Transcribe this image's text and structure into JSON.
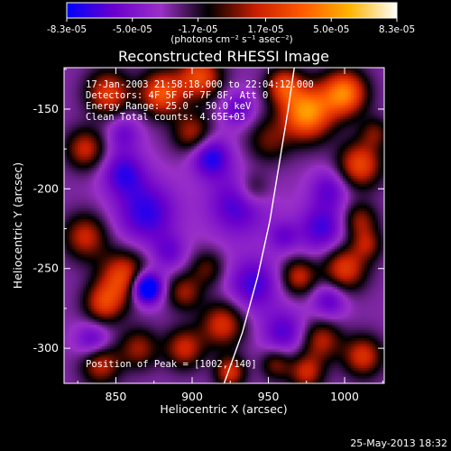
{
  "colorbar": {
    "tick_labels": [
      "-8.3e-05",
      "-5.0e-05",
      "-1.7e-05",
      "1.7e-05",
      "5.0e-05",
      "8.3e-05"
    ],
    "units_label": "(photons cm⁻² s⁻¹ asec⁻²)",
    "range": [
      -8.3e-05,
      8.3e-05
    ],
    "colors": [
      "#0000ff",
      "#6a00cc",
      "#9a30c8",
      "#000000",
      "#c81e00",
      "#ff5a00",
      "#ffb400",
      "#ffffff"
    ]
  },
  "chart_data": {
    "type": "heatmap",
    "title": "Reconstructed RHESSI Image",
    "xlabel": "Heliocentric X (arcsec)",
    "ylabel": "Heliocentric Y (arcsec)",
    "xlim": [
      816,
      1026
    ],
    "ylim": [
      -322,
      -124
    ],
    "x_ticks": [
      850,
      900,
      950,
      1000
    ],
    "y_ticks": [
      -300,
      -250,
      -200,
      -150
    ],
    "annotations": {
      "time": "17-Jan-2003 21:58:18.000 to 22:04:12.000",
      "detectors": "Detectors: 4F 5F 6F 7F 8F, Att 0",
      "energy": "Energy Range: 25.0 - 50.0 keV",
      "clean": "Clean     Total counts: 4.65E+03",
      "peak": "Position of Peak = [1002,-140]"
    },
    "peak": [
      1002,
      -140
    ],
    "limb_curve": [
      [
        921,
        -322
      ],
      [
        933,
        -290
      ],
      [
        943,
        -255
      ],
      [
        951,
        -220
      ],
      [
        957,
        -185
      ],
      [
        963,
        -150
      ],
      [
        967,
        -124
      ]
    ],
    "blobs": [
      [
        975,
        -152,
        1.0,
        12
      ],
      [
        1000,
        -140,
        0.9,
        10
      ],
      [
        1010,
        -185,
        0.7,
        10
      ],
      [
        960,
        -135,
        0.6,
        8
      ],
      [
        950,
        -170,
        0.35,
        10
      ],
      [
        905,
        -130,
        0.7,
        10
      ],
      [
        880,
        -140,
        0.75,
        10
      ],
      [
        845,
        -140,
        0.65,
        10
      ],
      [
        830,
        -175,
        0.55,
        9
      ],
      [
        900,
        -165,
        0.5,
        9
      ],
      [
        930,
        -210,
        -0.45,
        14
      ],
      [
        870,
        -215,
        -0.5,
        14
      ],
      [
        855,
        -190,
        -0.45,
        10
      ],
      [
        912,
        -180,
        -0.55,
        9
      ],
      [
        940,
        -200,
        0.35,
        8
      ],
      [
        985,
        -225,
        -0.45,
        11
      ],
      [
        1010,
        -220,
        0.45,
        8
      ],
      [
        830,
        -230,
        0.55,
        10
      ],
      [
        855,
        -255,
        0.7,
        11
      ],
      [
        842,
        -272,
        0.6,
        9
      ],
      [
        870,
        -262,
        -1.0,
        7
      ],
      [
        885,
        -240,
        -0.3,
        8
      ],
      [
        895,
        -265,
        0.45,
        8
      ],
      [
        910,
        -250,
        0.35,
        8
      ],
      [
        940,
        -260,
        -0.45,
        12
      ],
      [
        970,
        -255,
        0.55,
        8
      ],
      [
        1000,
        -250,
        0.65,
        10
      ],
      [
        1015,
        -235,
        0.4,
        7
      ],
      [
        920,
        -285,
        0.6,
        10
      ],
      [
        895,
        -300,
        0.55,
        9
      ],
      [
        865,
        -300,
        0.45,
        9
      ],
      [
        840,
        -310,
        0.55,
        9
      ],
      [
        960,
        -290,
        -0.4,
        10
      ],
      [
        985,
        -295,
        0.5,
        9
      ],
      [
        1012,
        -305,
        0.6,
        9
      ],
      [
        975,
        -315,
        0.55,
        8
      ],
      [
        925,
        -315,
        0.6,
        7
      ],
      [
        955,
        -310,
        0.4,
        7
      ],
      [
        835,
        -295,
        -0.4,
        8
      ],
      [
        990,
        -270,
        -0.4,
        8
      ],
      [
        855,
        -165,
        -0.3,
        8
      ],
      [
        1020,
        -165,
        0.35,
        7
      ],
      [
        990,
        -200,
        -0.35,
        9
      ],
      [
        930,
        -150,
        -0.35,
        8
      ],
      [
        960,
        -230,
        -0.3,
        7
      ]
    ]
  },
  "footer": {
    "timestamp": "25-May-2013 18:32"
  }
}
